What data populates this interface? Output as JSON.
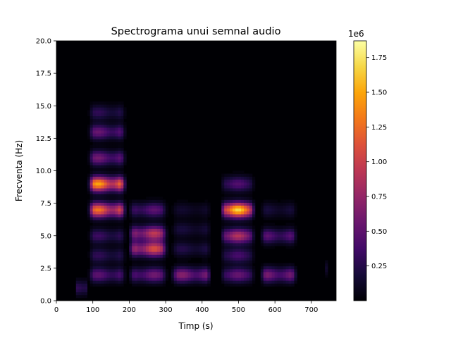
{
  "chart_data": {
    "type": "heatmap",
    "title": "Spectrograma unui semnal audio",
    "xlabel": "Timp (s)",
    "ylabel": "Frecventa (Hz)",
    "xlim": [
      0,
      768
    ],
    "ylim": [
      0,
      20
    ],
    "x_ticks": [
      0,
      100,
      200,
      300,
      400,
      500,
      600,
      700
    ],
    "x_tick_labels": [
      "0",
      "100",
      "200",
      "300",
      "400",
      "500",
      "600",
      "700"
    ],
    "y_ticks": [
      0,
      2.5,
      5,
      7.5,
      10,
      12.5,
      15,
      17.5,
      20
    ],
    "y_tick_labels": [
      "0.0",
      "2.5",
      "5.0",
      "7.5",
      "10.0",
      "12.5",
      "15.0",
      "17.5",
      "20.0"
    ],
    "colormap": "inferno",
    "colorbar": {
      "min": 0,
      "max": 1870000,
      "scale_label": "1e6",
      "ticks": [
        250000,
        500000,
        750000,
        1000000,
        1250000,
        1500000,
        1750000
      ],
      "tick_labels": [
        "0.25",
        "0.50",
        "0.75",
        "1.00",
        "1.25",
        "1.50",
        "1.75"
      ]
    },
    "segments": [
      {
        "t_start": 55,
        "t_end": 85,
        "peaks": [
          {
            "freq": 1.0,
            "value": 400000
          }
        ]
      },
      {
        "t_start": 92,
        "t_end": 185,
        "peaks": [
          {
            "freq": 2.0,
            "value": 500000
          },
          {
            "freq": 3.5,
            "value": 300000
          },
          {
            "freq": 5.0,
            "value": 350000
          },
          {
            "freq": 7.0,
            "value": 1300000
          },
          {
            "freq": 9.0,
            "value": 1500000
          },
          {
            "freq": 11.0,
            "value": 600000
          },
          {
            "freq": 13.0,
            "value": 550000
          },
          {
            "freq": 14.5,
            "value": 300000
          }
        ]
      },
      {
        "t_start": 205,
        "t_end": 300,
        "peaks": [
          {
            "freq": 2.0,
            "value": 600000
          },
          {
            "freq": 4.0,
            "value": 1100000
          },
          {
            "freq": 5.2,
            "value": 950000
          },
          {
            "freq": 7.0,
            "value": 500000
          }
        ]
      },
      {
        "t_start": 320,
        "t_end": 420,
        "peaks": [
          {
            "freq": 2.0,
            "value": 700000
          },
          {
            "freq": 4.0,
            "value": 250000
          },
          {
            "freq": 5.5,
            "value": 200000
          },
          {
            "freq": 7.0,
            "value": 150000
          }
        ]
      },
      {
        "t_start": 455,
        "t_end": 540,
        "peaks": [
          {
            "freq": 2.0,
            "value": 550000
          },
          {
            "freq": 3.5,
            "value": 400000
          },
          {
            "freq": 5.0,
            "value": 900000
          },
          {
            "freq": 7.0,
            "value": 1700000
          },
          {
            "freq": 9.0,
            "value": 450000
          }
        ]
      },
      {
        "t_start": 565,
        "t_end": 655,
        "peaks": [
          {
            "freq": 2.0,
            "value": 650000
          },
          {
            "freq": 5.0,
            "value": 500000
          },
          {
            "freq": 7.0,
            "value": 200000
          }
        ]
      },
      {
        "t_start": 740,
        "t_end": 745,
        "peaks": [
          {
            "freq": 2.5,
            "value": 150000
          }
        ]
      }
    ]
  }
}
